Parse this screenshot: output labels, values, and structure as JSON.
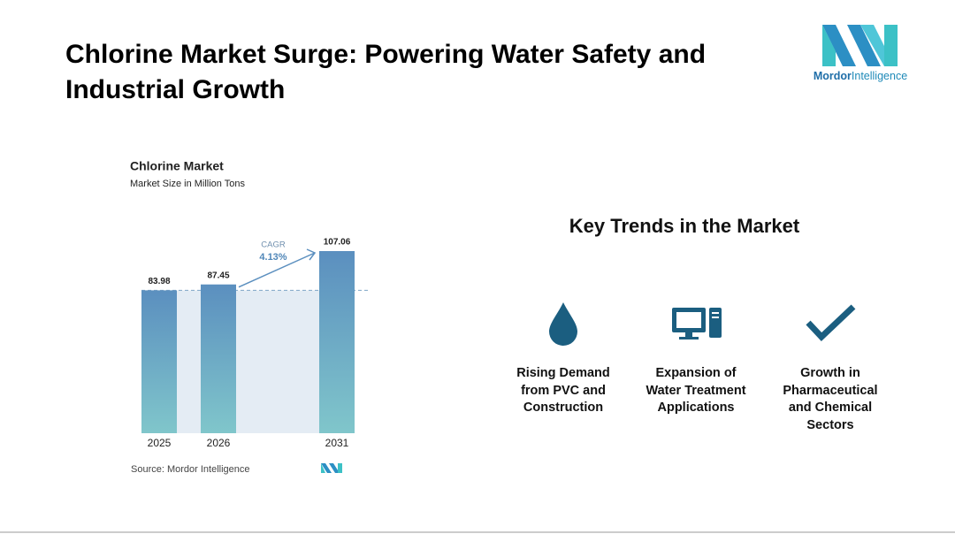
{
  "title": "Chlorine Market Surge: Powering Water Safety and Industrial Growth",
  "logo": {
    "brand": "Mordor",
    "suffix": "Intelligence"
  },
  "chart_data": {
    "type": "bar",
    "title": "Chlorine Market",
    "subtitle": "Market Size in Million Tons",
    "categories": [
      "2025",
      "2026",
      "2031"
    ],
    "values": [
      83.98,
      87.45,
      107.06
    ],
    "color_top": "#5b8fbf",
    "color_bottom": "#80c6cb",
    "annotation": {
      "label": "CAGR",
      "value": "4.13%"
    },
    "source": "Source: Mordor Intelligence"
  },
  "trends": {
    "title": "Key Trends in the Market",
    "items": [
      "Rising Demand from PVC and Construction",
      "Expansion of Water Treatment Applications",
      "Growth in Pharmaceutical and Chemical Sectors"
    ]
  }
}
